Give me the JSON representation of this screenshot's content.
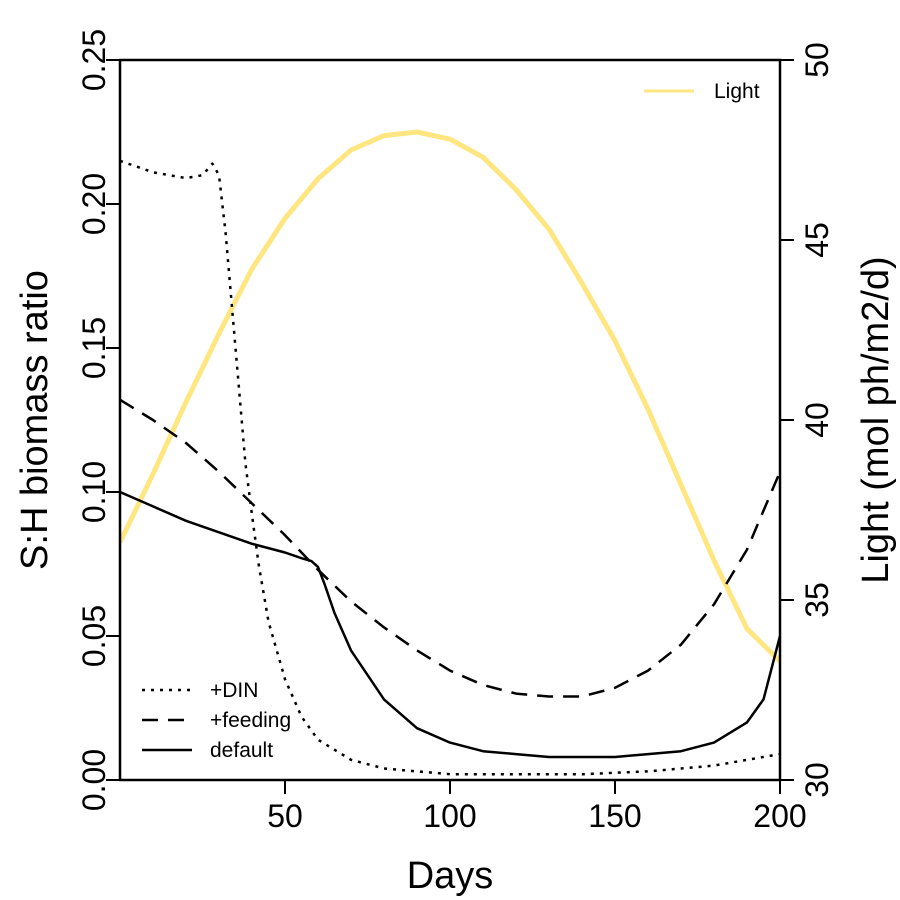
{
  "chart_data": {
    "type": "line",
    "xlabel": "Days",
    "ylabel": "S:H biomass ratio",
    "y2label": "Light (mol ph/m2/d)",
    "xlim": [
      0,
      200
    ],
    "ylim": [
      0,
      0.25
    ],
    "y2lim": [
      30,
      50
    ],
    "xticks": [
      {
        "value": 50,
        "label": "50"
      },
      {
        "value": 100,
        "label": "100"
      },
      {
        "value": 150,
        "label": "150"
      },
      {
        "value": 200,
        "label": "200"
      }
    ],
    "yticks": [
      {
        "value": 0.0,
        "label": "0.00"
      },
      {
        "value": 0.05,
        "label": "0.05"
      },
      {
        "value": 0.1,
        "label": "0.10"
      },
      {
        "value": 0.15,
        "label": "0.15"
      },
      {
        "value": 0.2,
        "label": "0.20"
      },
      {
        "value": 0.25,
        "label": "0.25"
      }
    ],
    "y2ticks": [
      {
        "value": 30,
        "label": "30"
      },
      {
        "value": 35,
        "label": "35"
      },
      {
        "value": 40,
        "label": "40"
      },
      {
        "value": 45,
        "label": "45"
      },
      {
        "value": 50,
        "label": "50"
      }
    ],
    "grid": false,
    "legends": {
      "left": {
        "placement": "bottom-left",
        "entries": [
          "+DIN",
          "+feeding",
          "default"
        ]
      },
      "right": {
        "placement": "top-right",
        "entries": [
          "Light"
        ]
      }
    },
    "series": [
      {
        "name": "Light",
        "axis": "right",
        "color": "#FFE680",
        "dash": "solid",
        "x": [
          0,
          10,
          20,
          30,
          40,
          50,
          60,
          70,
          80,
          90,
          100,
          110,
          120,
          130,
          140,
          150,
          160,
          170,
          180,
          190,
          200
        ],
        "y": [
          36.6,
          38.5,
          40.5,
          42.4,
          44.2,
          45.6,
          46.7,
          47.5,
          47.9,
          48.0,
          47.8,
          47.3,
          46.4,
          45.3,
          43.8,
          42.2,
          40.3,
          38.2,
          36.1,
          34.2,
          33.3
        ]
      },
      {
        "name": "+DIN",
        "axis": "left",
        "color": "#000000",
        "dash": "dotted",
        "x": [
          0,
          10,
          20,
          25,
          28,
          30,
          32,
          35,
          38,
          40,
          42,
          45,
          50,
          55,
          60,
          70,
          80,
          90,
          100,
          120,
          140,
          160,
          180,
          200
        ],
        "y": [
          0.215,
          0.211,
          0.209,
          0.21,
          0.214,
          0.21,
          0.19,
          0.15,
          0.11,
          0.092,
          0.075,
          0.055,
          0.035,
          0.022,
          0.014,
          0.007,
          0.004,
          0.003,
          0.002,
          0.002,
          0.002,
          0.003,
          0.005,
          0.009
        ]
      },
      {
        "name": "+feeding",
        "axis": "left",
        "color": "#000000",
        "dash": "dashed",
        "x": [
          0,
          10,
          20,
          30,
          40,
          50,
          60,
          70,
          80,
          90,
          100,
          110,
          120,
          130,
          140,
          150,
          160,
          170,
          180,
          190,
          200
        ],
        "y": [
          0.132,
          0.125,
          0.117,
          0.107,
          0.096,
          0.085,
          0.073,
          0.062,
          0.053,
          0.045,
          0.038,
          0.033,
          0.03,
          0.029,
          0.029,
          0.032,
          0.038,
          0.047,
          0.061,
          0.08,
          0.107
        ]
      },
      {
        "name": "default",
        "axis": "left",
        "color": "#000000",
        "dash": "solid",
        "x": [
          0,
          10,
          20,
          30,
          40,
          50,
          55,
          58,
          60,
          62,
          65,
          70,
          80,
          90,
          100,
          110,
          120,
          130,
          140,
          150,
          160,
          170,
          180,
          190,
          195,
          200
        ],
        "y": [
          0.1,
          0.095,
          0.09,
          0.086,
          0.082,
          0.079,
          0.077,
          0.076,
          0.074,
          0.068,
          0.058,
          0.045,
          0.028,
          0.018,
          0.013,
          0.01,
          0.009,
          0.008,
          0.008,
          0.008,
          0.009,
          0.01,
          0.013,
          0.02,
          0.028,
          0.05
        ]
      }
    ]
  }
}
